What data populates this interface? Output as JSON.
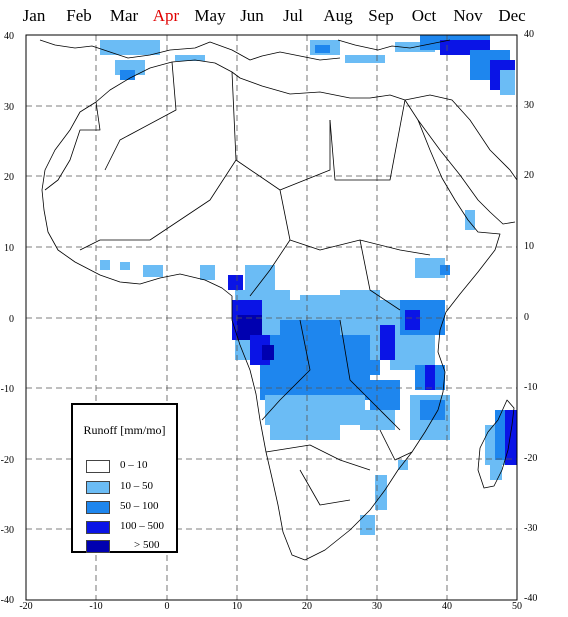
{
  "months": [
    {
      "label": "Jan",
      "active": false
    },
    {
      "label": "Feb",
      "active": false
    },
    {
      "label": "Mar",
      "active": false
    },
    {
      "label": "Apr",
      "active": true
    },
    {
      "label": "May",
      "active": false
    },
    {
      "label": "Jun",
      "active": false
    },
    {
      "label": "Jul",
      "active": false
    },
    {
      "label": "Aug",
      "active": false
    },
    {
      "label": "Sep",
      "active": false
    },
    {
      "label": "Oct",
      "active": false
    },
    {
      "label": "Nov",
      "active": false
    },
    {
      "label": "Dec",
      "active": false
    }
  ],
  "map": {
    "lon_range": [
      -20,
      50
    ],
    "lat_range": [
      -40,
      40
    ],
    "lon_ticks": [
      "-20",
      "-10",
      "0",
      "10",
      "20",
      "30",
      "40",
      "50"
    ],
    "lat_ticks_left": [
      "40",
      "30",
      "20",
      "10",
      "0",
      "-10",
      "-20",
      "-30",
      "-40"
    ],
    "lat_ticks_right": [
      "40",
      "30",
      "20",
      "10",
      "0",
      "-10",
      "-20",
      "-30",
      "-40"
    ]
  },
  "legend": {
    "title": "Runoff [mm/mo]",
    "classes": [
      {
        "range": "0  –  10",
        "color": "#ffffff"
      },
      {
        "range": "10  –  50",
        "color": "#6bbcf5"
      },
      {
        "range": "50  –  100",
        "color": "#1e86ee"
      },
      {
        "range": "100  –  500",
        "color": "#0a14e6"
      },
      {
        "range": "> 500",
        "color": "#0000b0"
      }
    ]
  },
  "colors": {
    "coast": "#000000",
    "grid": "#555555",
    "accent_month": "#e00000"
  }
}
